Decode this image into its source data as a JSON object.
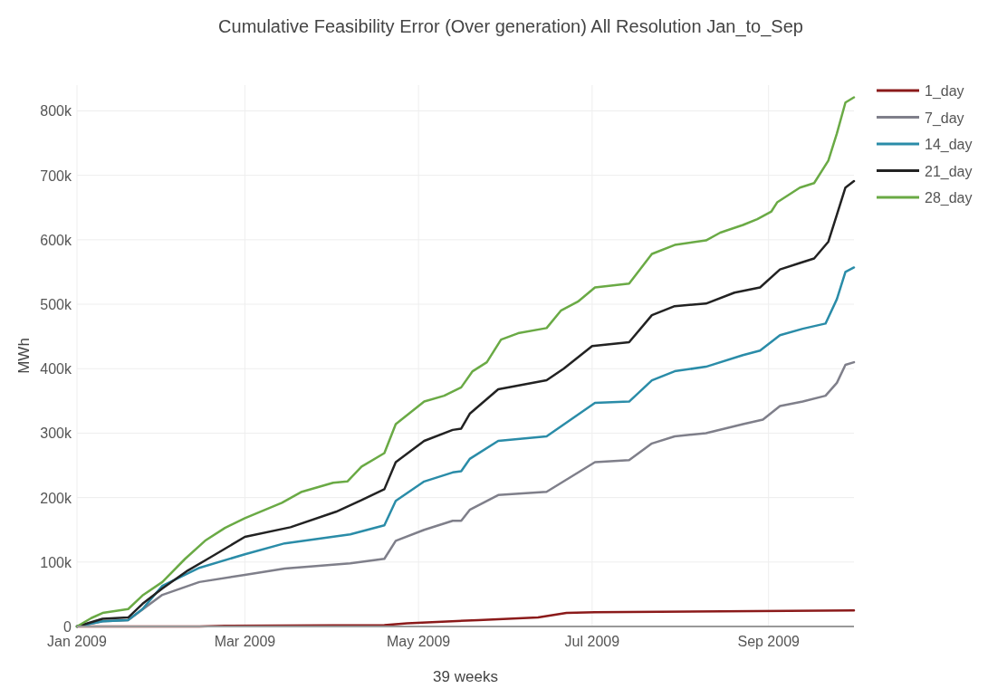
{
  "chart_data": {
    "type": "line",
    "title": "Cumulative Feasibility Error (Over generation) All Resolution Jan_to_Sep",
    "xlabel": "39 weeks",
    "ylabel": "MWh",
    "xlim": [
      "2009-01-01",
      "2009-10-01"
    ],
    "xticks": [
      {
        "value": "2009-01-01",
        "label": "Jan 2009"
      },
      {
        "value": "2009-03-01",
        "label": "Mar 2009"
      },
      {
        "value": "2009-05-01",
        "label": "May 2009"
      },
      {
        "value": "2009-07-01",
        "label": "Jul 2009"
      },
      {
        "value": "2009-09-01",
        "label": "Sep 2009"
      }
    ],
    "ylim": [
      0,
      840000
    ],
    "yticks": [
      0,
      {
        "value": 100000,
        "label": "100k"
      },
      {
        "value": 200000,
        "label": "200k"
      },
      {
        "value": 300000,
        "label": "300k"
      },
      {
        "value": 400000,
        "label": "400k"
      },
      {
        "value": 500000,
        "label": "500k"
      },
      {
        "value": 600000,
        "label": "600k"
      },
      {
        "value": 700000,
        "label": "700k"
      },
      {
        "value": 800000,
        "label": "800k"
      }
    ],
    "grid": true,
    "legend": "top right",
    "line_style": "solid",
    "series": [
      {
        "name": "1_day",
        "color": "#8b1a1a",
        "x": [
          "2009-01-01",
          "2009-02-13",
          "2009-02-22",
          "2009-04-19",
          "2009-04-27",
          "2009-05-22",
          "2009-06-12",
          "2009-06-22",
          "2009-07-02",
          "2009-10-01"
        ],
        "values": [
          0,
          0,
          1000,
          2000,
          5000,
          10000,
          14000,
          21000,
          22000,
          25000
        ]
      },
      {
        "name": "7_day",
        "color": "#7f7f8a",
        "x": [
          "2009-01-01",
          "2009-01-10",
          "2009-01-19",
          "2009-01-31",
          "2009-02-13",
          "2009-03-01",
          "2009-03-15",
          "2009-04-07",
          "2009-04-19",
          "2009-04-23",
          "2009-05-03",
          "2009-05-13",
          "2009-05-16",
          "2009-05-19",
          "2009-05-29",
          "2009-06-15",
          "2009-07-02",
          "2009-07-14",
          "2009-07-22",
          "2009-07-30",
          "2009-08-10",
          "2009-08-23",
          "2009-08-30",
          "2009-09-05",
          "2009-09-13",
          "2009-09-21",
          "2009-09-25",
          "2009-09-28",
          "2009-10-01"
        ],
        "values": [
          0,
          8000,
          10000,
          49000,
          69000,
          80000,
          90000,
          98000,
          105000,
          133000,
          150000,
          164000,
          164000,
          181000,
          204000,
          209000,
          255000,
          258000,
          284000,
          295000,
          300000,
          314000,
          321000,
          342000,
          349000,
          358000,
          378000,
          406000,
          410000
        ]
      },
      {
        "name": "14_day",
        "color": "#2a8ca8",
        "x": [
          "2009-01-01",
          "2009-01-10",
          "2009-01-19",
          "2009-01-24",
          "2009-01-31",
          "2009-02-13",
          "2009-03-01",
          "2009-03-15",
          "2009-04-07",
          "2009-04-19",
          "2009-04-23",
          "2009-05-03",
          "2009-05-13",
          "2009-05-16",
          "2009-05-19",
          "2009-05-29",
          "2009-06-15",
          "2009-07-02",
          "2009-07-14",
          "2009-07-22",
          "2009-07-30",
          "2009-08-10",
          "2009-08-23",
          "2009-08-29",
          "2009-09-05",
          "2009-09-13",
          "2009-09-21",
          "2009-09-25",
          "2009-09-28",
          "2009-10-01"
        ],
        "values": [
          0,
          8000,
          10000,
          27000,
          63000,
          91000,
          112000,
          129000,
          143000,
          157000,
          195000,
          225000,
          239000,
          241000,
          260000,
          288000,
          295000,
          347000,
          349000,
          382000,
          396000,
          403000,
          421000,
          428000,
          452000,
          462000,
          470000,
          508000,
          550000,
          557000
        ]
      },
      {
        "name": "21_day",
        "color": "#222222",
        "x": [
          "2009-01-01",
          "2009-01-10",
          "2009-01-19",
          "2009-01-24",
          "2009-01-31",
          "2009-02-09",
          "2009-02-16",
          "2009-03-01",
          "2009-03-17",
          "2009-04-02",
          "2009-04-11",
          "2009-04-19",
          "2009-04-23",
          "2009-05-03",
          "2009-05-13",
          "2009-05-16",
          "2009-05-19",
          "2009-05-29",
          "2009-06-15",
          "2009-06-21",
          "2009-07-01",
          "2009-07-14",
          "2009-07-22",
          "2009-07-30",
          "2009-08-10",
          "2009-08-20",
          "2009-08-29",
          "2009-09-05",
          "2009-09-12",
          "2009-09-17",
          "2009-09-22",
          "2009-09-25",
          "2009-09-28",
          "2009-10-01"
        ],
        "values": [
          0,
          12000,
          14000,
          35000,
          59000,
          87000,
          105000,
          139000,
          154000,
          178000,
          196000,
          213000,
          255000,
          288000,
          305000,
          307000,
          330000,
          368000,
          382000,
          400000,
          435000,
          441000,
          483000,
          497000,
          501000,
          518000,
          526000,
          554000,
          564000,
          571000,
          597000,
          639000,
          681000,
          691000
        ]
      },
      {
        "name": "28_day",
        "color": "#6aaa45",
        "x": [
          "2009-01-01",
          "2009-01-06",
          "2009-01-10",
          "2009-01-19",
          "2009-01-24",
          "2009-01-31",
          "2009-02-08",
          "2009-02-15",
          "2009-02-22",
          "2009-03-01",
          "2009-03-14",
          "2009-03-21",
          "2009-04-01",
          "2009-04-06",
          "2009-04-11",
          "2009-04-19",
          "2009-04-23",
          "2009-05-03",
          "2009-05-10",
          "2009-05-16",
          "2009-05-20",
          "2009-05-25",
          "2009-05-30",
          "2009-06-05",
          "2009-06-15",
          "2009-06-20",
          "2009-06-26",
          "2009-07-02",
          "2009-07-14",
          "2009-07-22",
          "2009-07-30",
          "2009-08-10",
          "2009-08-15",
          "2009-08-23",
          "2009-08-28",
          "2009-09-02",
          "2009-09-04",
          "2009-09-12",
          "2009-09-17",
          "2009-09-22",
          "2009-09-25",
          "2009-09-28",
          "2009-10-01"
        ],
        "values": [
          0,
          13000,
          21000,
          27000,
          48000,
          69000,
          105000,
          133000,
          153000,
          168000,
          192000,
          209000,
          223000,
          225000,
          248000,
          269000,
          314000,
          349000,
          358000,
          371000,
          396000,
          410000,
          445000,
          455000,
          463000,
          490000,
          504000,
          526000,
          532000,
          578000,
          592000,
          599000,
          611000,
          623000,
          632000,
          644000,
          658000,
          681000,
          688000,
          723000,
          765000,
          813000,
          821000
        ]
      }
    ]
  }
}
